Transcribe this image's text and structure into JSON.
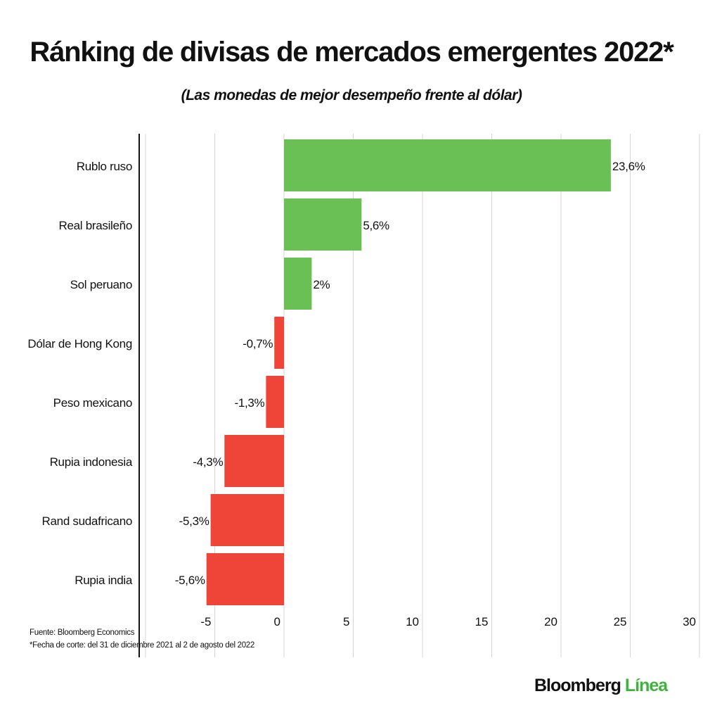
{
  "chart_data": {
    "type": "bar",
    "orientation": "horizontal",
    "title": "Ránking de divisas de mercados emergentes 2022*",
    "subtitle": "(Las monedas de mejor desempeño frente al dólar)",
    "categories": [
      "Rublo ruso",
      "Real brasileño",
      "Sol peruano",
      "Dólar de Hong Kong",
      "Peso mexicano",
      "Rupia indonesia",
      "Rand sudafricano",
      "Rupia india"
    ],
    "values": [
      23.6,
      5.6,
      2.0,
      -0.7,
      -1.3,
      -4.3,
      -5.3,
      -5.6
    ],
    "data_labels": [
      "23,6%",
      "5,6%",
      "2%",
      "-0,7%",
      "-1,3%",
      "-4,3%",
      "-5,3%",
      "-5,6%"
    ],
    "xlim": [
      -10,
      30
    ],
    "xticks": [
      -5,
      0,
      5,
      10,
      15,
      20,
      25,
      30
    ],
    "xtick_labels": [
      "-5",
      "0",
      "5",
      "10",
      "15",
      "20",
      "25",
      "30"
    ],
    "grid": true,
    "colors": {
      "positive": "#6abf55",
      "negative": "#ef4538"
    }
  },
  "footer": {
    "source": "Fuente: Bloomberg Economics",
    "note": "*Fecha de corte: del 31 de diciembre 2021 al 2 de agosto del 2022"
  },
  "logo": {
    "brand": "Bloomberg",
    "accent": "Línea"
  }
}
